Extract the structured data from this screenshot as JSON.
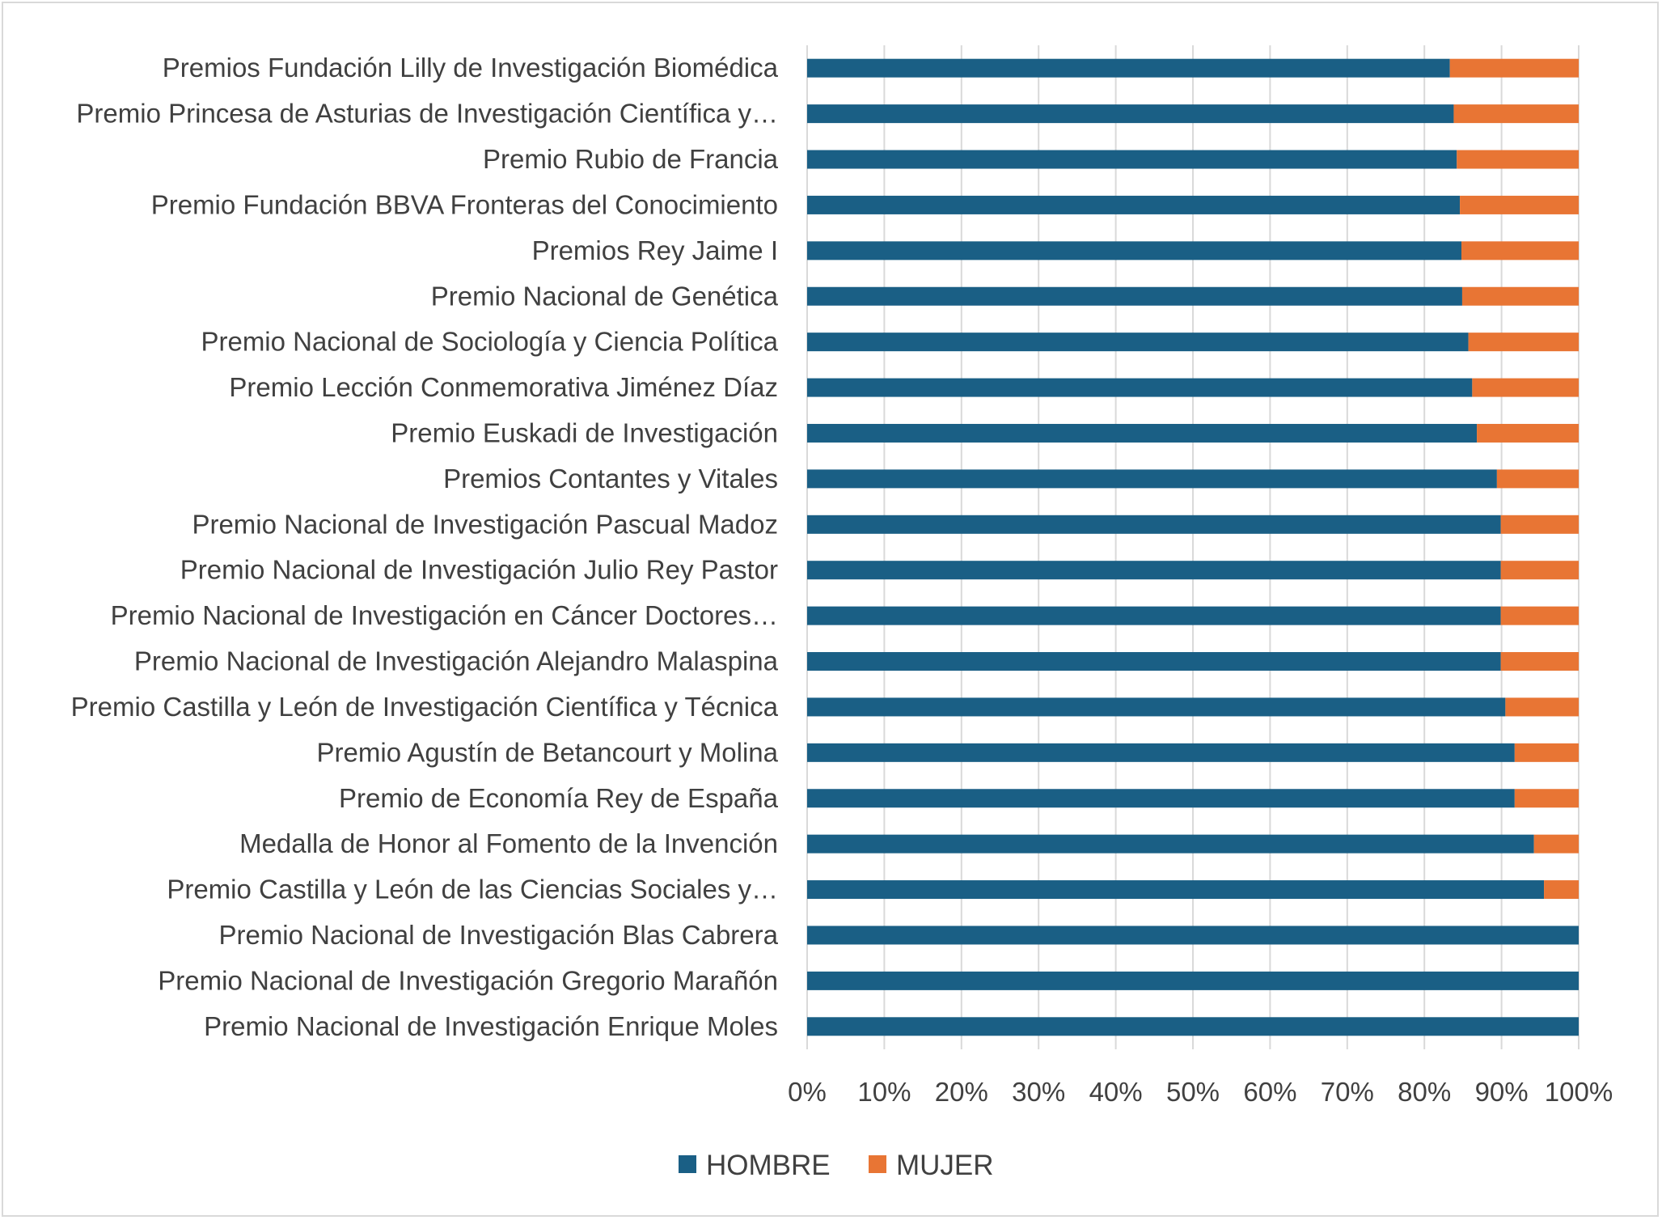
{
  "chart_data": {
    "type": "bar",
    "orientation": "horizontal",
    "stacked": "percent",
    "categories": [
      "Premios Fundación Lilly de Investigación Biomédica",
      "Premio Princesa de Asturias de Investigación Científica y…",
      "Premio Rubio de Francia",
      "Premio Fundación BBVA Fronteras del Conocimiento",
      "Premios Rey Jaime I",
      "Premio Nacional de Genética",
      "Premio Nacional de Sociología y Ciencia Política",
      "Premio Lección Conmemorativa Jiménez Díaz",
      "Premio Euskadi de Investigación",
      "Premios Contantes y Vitales",
      "Premio Nacional de Investigación Pascual Madoz",
      "Premio Nacional de Investigación Julio Rey Pastor",
      "Premio Nacional de Investigación en Cáncer Doctores…",
      "Premio Nacional de Investigación Alejandro Malaspina",
      "Premio Castilla y León de Investigación Científica y Técnica",
      "Premio Agustín de Betancourt y Molina",
      "Premio de Economía Rey de España",
      "Medalla de Honor al Fomento de la Invención",
      "Premio Castilla y León de las Ciencias Sociales y…",
      "Premio Nacional de Investigación Blas Cabrera",
      "Premio Nacional de Investigación Gregorio Marañón",
      "Premio Nacional de Investigación Enrique Moles"
    ],
    "series": [
      {
        "name": "HOMBRE",
        "color": "#1a5f85",
        "values": [
          83.3,
          83.8,
          84.2,
          84.6,
          84.8,
          84.9,
          85.7,
          86.2,
          86.8,
          89.4,
          89.9,
          89.9,
          89.9,
          89.9,
          90.5,
          91.7,
          91.7,
          94.2,
          95.5,
          100,
          100,
          100
        ]
      },
      {
        "name": "MUJER",
        "color": "#e87534",
        "values": [
          16.7,
          16.2,
          15.8,
          15.4,
          15.2,
          15.1,
          14.3,
          13.8,
          13.2,
          10.6,
          10.1,
          10.1,
          10.1,
          10.1,
          9.5,
          8.3,
          8.3,
          5.8,
          4.5,
          0,
          0,
          0
        ]
      }
    ],
    "xticks": [
      "0%",
      "10%",
      "20%",
      "30%",
      "40%",
      "50%",
      "60%",
      "70%",
      "80%",
      "90%",
      "100%"
    ],
    "xlim": [
      0,
      100
    ],
    "grid": "vertical",
    "legend": "bottom"
  }
}
